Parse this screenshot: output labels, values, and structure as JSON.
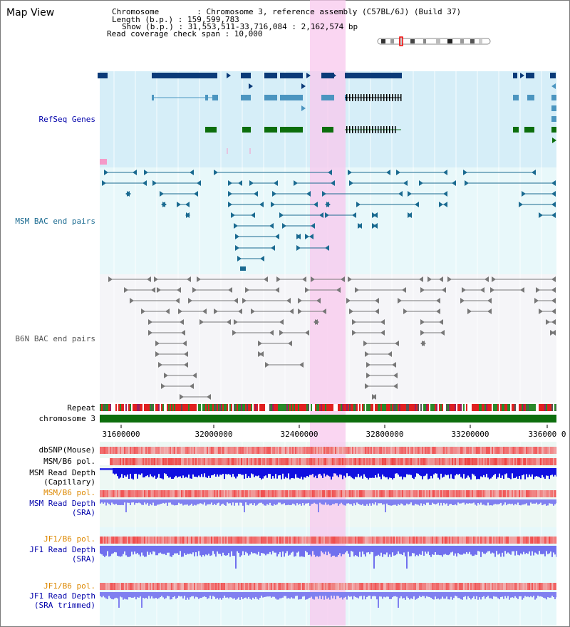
{
  "view_title": "Map View",
  "info": {
    "line1": "Chromosome        : Chromosome 3, reference assembly (C57BL/6J) (Build 37)",
    "line2": "Length (b.p.) : 159,599,783",
    "line3": "Show (b.p.) : 31,553,511-33,716,084 : 2,162,574 bp",
    "line4": "Read coverage check span : 10,000"
  },
  "tracks": {
    "refseq": "RefSeq Genes",
    "msm_bac": "MSM BAC end pairs",
    "b6n_bac": "B6N BAC end pairs",
    "repeat": "Repeat",
    "chromosome": "chromosome 3",
    "dbsnp": "dbSNP(Mouse)",
    "msm_b6_pol": "MSM/B6 pol.",
    "msm_depth_cap_1": "MSM Read Depth",
    "msm_depth_cap_2": "(Capillary)",
    "msm_b6_pol2": "MSM/B6 pol.",
    "msm_depth_sra_1": "MSM Read Depth",
    "msm_depth_sra_2": "(SRA)",
    "jf1_b6_pol": "JF1/B6 pol.",
    "jf1_depth_1": "JF1 Read Depth",
    "jf1_depth_2": "(SRA)",
    "jf1_b6_pol2": "JF1/B6 pol.",
    "jf1_trim_1": "JF1 Read Depth",
    "jf1_trim_2": "(SRA trimmed)"
  },
  "axis": {
    "ticks": [
      "31600000",
      "32000000",
      "32400000",
      "32800000",
      "33200000",
      "33600000"
    ]
  },
  "colors": {
    "navy": "#0a3a78",
    "teal": "#4b95c0",
    "green": "#0c6e0c",
    "refseq_bg": "#d6eef8",
    "bac_bg": "#e8f8fa",
    "b6n_bg": "#f5f5f8",
    "highlight": "#f8c8ee",
    "label_blue": "#0000aa",
    "label_teal": "#1a6a90",
    "label_orange": "#dd8800"
  },
  "highlight_range_bp": [
    32500000,
    32650000
  ],
  "view_range_bp": [
    31553511,
    33716084
  ]
}
